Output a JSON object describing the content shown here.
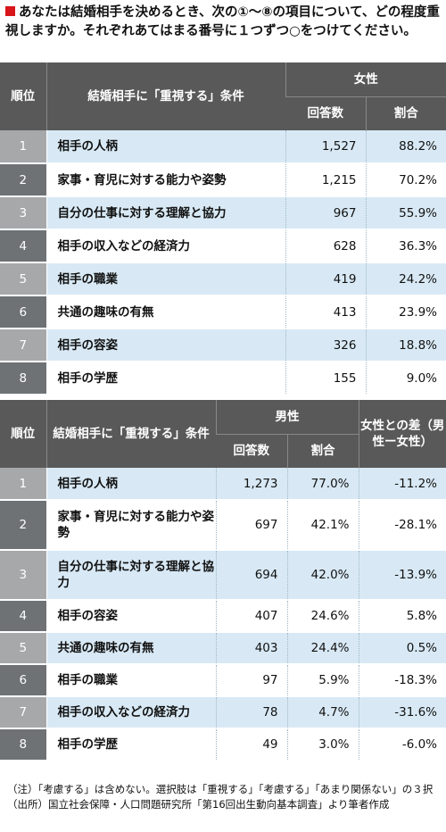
{
  "title": "あなたは結婚相手を決めるとき、次の①～⑧の項目について、どの程度重視しますか。それぞれあてはまる番号に１つずつ○をつけてください。",
  "table_female": {
    "header_rank": "順位",
    "header_condition": "結婚相手に「重視する」条件",
    "header_group": "女性",
    "header_count": "回答数",
    "header_share": "割合",
    "rows": [
      {
        "rank": "1",
        "condition": "相手の人柄",
        "count": "1,527",
        "share": "88.2%"
      },
      {
        "rank": "2",
        "condition": "家事・育児に対する能力や姿勢",
        "count": "1,215",
        "share": "70.2%"
      },
      {
        "rank": "3",
        "condition": "自分の仕事に対する理解と協力",
        "count": "967",
        "share": "55.9%"
      },
      {
        "rank": "4",
        "condition": "相手の収入などの経済力",
        "count": "628",
        "share": "36.3%"
      },
      {
        "rank": "5",
        "condition": "相手の職業",
        "count": "419",
        "share": "24.2%"
      },
      {
        "rank": "6",
        "condition": "共通の趣味の有無",
        "count": "413",
        "share": "23.9%"
      },
      {
        "rank": "7",
        "condition": "相手の容姿",
        "count": "326",
        "share": "18.8%"
      },
      {
        "rank": "8",
        "condition": "相手の学歴",
        "count": "155",
        "share": "9.0%"
      }
    ]
  },
  "table_male": {
    "header_rank": "順位",
    "header_condition": "結婚相手に「重視する」条件",
    "header_group": "男性",
    "header_count": "回答数",
    "header_share": "割合",
    "header_diff": "女性との差（男性ー女性）",
    "rows": [
      {
        "rank": "1",
        "condition": "相手の人柄",
        "count": "1,273",
        "share": "77.0%",
        "diff": "-11.2%"
      },
      {
        "rank": "2",
        "condition": "家事・育児に対する能力や姿勢",
        "count": "697",
        "share": "42.1%",
        "diff": "-28.1%"
      },
      {
        "rank": "3",
        "condition": "自分の仕事に対する理解と協力",
        "count": "694",
        "share": "42.0%",
        "diff": "-13.9%"
      },
      {
        "rank": "4",
        "condition": "相手の容姿",
        "count": "407",
        "share": "24.6%",
        "diff": "5.8%"
      },
      {
        "rank": "5",
        "condition": "共通の趣味の有無",
        "count": "403",
        "share": "24.4%",
        "diff": "0.5%"
      },
      {
        "rank": "6",
        "condition": "相手の職業",
        "count": "97",
        "share": "5.9%",
        "diff": "-18.3%"
      },
      {
        "rank": "7",
        "condition": "相手の収入などの経済力",
        "count": "78",
        "share": "4.7%",
        "diff": "-31.6%"
      },
      {
        "rank": "8",
        "condition": "相手の学歴",
        "count": "49",
        "share": "3.0%",
        "diff": "-6.0%"
      }
    ]
  },
  "notes": [
    "（注）「考慮する」は含めない。選択肢は「重視する」「考慮する」「あまり関係ない」の３択",
    "（出所）国立社会保障・人口問題研究所「第16回出生動向基本調査」より筆者作成"
  ]
}
